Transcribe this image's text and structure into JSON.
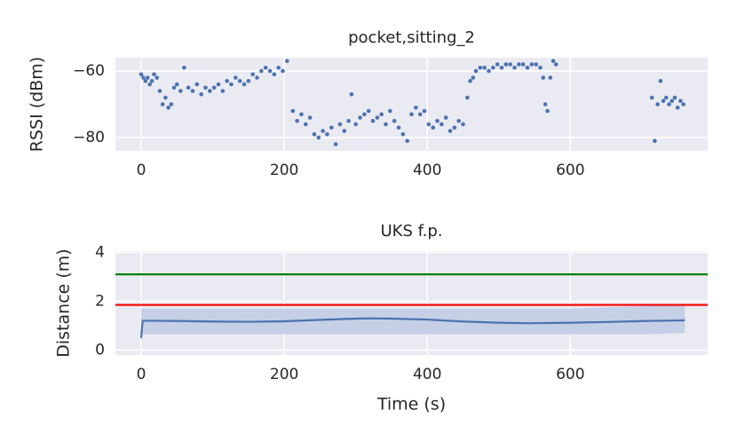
{
  "chart_data": [
    {
      "type": "scatter",
      "title": "pocket,sitting_2",
      "ylabel": "RSSI (dBm)",
      "color": "#4c72b0",
      "grid": true,
      "x": [
        0,
        3,
        6,
        9,
        12,
        15,
        18,
        22,
        26,
        30,
        34,
        38,
        42,
        46,
        50,
        55,
        60,
        66,
        72,
        78,
        84,
        90,
        96,
        102,
        108,
        114,
        120,
        126,
        132,
        138,
        144,
        150,
        156,
        162,
        168,
        174,
        180,
        186,
        192,
        198,
        204,
        212,
        218,
        224,
        230,
        236,
        242,
        248,
        254,
        260,
        266,
        272,
        278,
        284,
        290,
        294,
        300,
        306,
        312,
        318,
        324,
        330,
        336,
        342,
        348,
        354,
        360,
        366,
        372,
        378,
        384,
        390,
        396,
        402,
        408,
        414,
        420,
        426,
        432,
        438,
        444,
        450,
        456,
        460,
        464,
        468,
        474,
        480,
        486,
        492,
        498,
        504,
        510,
        516,
        522,
        528,
        534,
        540,
        546,
        552,
        558,
        562,
        565,
        568,
        572,
        576,
        580,
        714,
        718,
        722,
        726,
        730,
        734,
        738,
        742,
        746,
        750,
        754,
        758
      ],
      "y": [
        -61,
        -62,
        -63,
        -62,
        -64,
        -63,
        -61,
        -62,
        -66,
        -70,
        -68,
        -71,
        -70,
        -65,
        -64,
        -66,
        -59,
        -65,
        -66,
        -64,
        -67,
        -65,
        -66,
        -65,
        -64,
        -66,
        -63,
        -64,
        -62,
        -63,
        -64,
        -63,
        -61,
        -62,
        -60,
        -59,
        -60,
        -61,
        -59,
        -60,
        -57,
        -72,
        -75,
        -73,
        -76,
        -74,
        -79,
        -80,
        -78,
        -79,
        -77,
        -82,
        -76,
        -78,
        -75,
        -67,
        -76,
        -74,
        -73,
        -72,
        -75,
        -74,
        -73,
        -76,
        -72,
        -75,
        -77,
        -79,
        -81,
        -73,
        -71,
        -73,
        -72,
        -76,
        -77,
        -75,
        -76,
        -74,
        -78,
        -77,
        -75,
        -76,
        -68,
        -63,
        -62,
        -60,
        -59,
        -59,
        -60,
        -59,
        -58,
        -59,
        -58,
        -58,
        -59,
        -58,
        -58,
        -59,
        -58,
        -58,
        -59,
        -62,
        -70,
        -72,
        -62,
        -57,
        -58,
        -68,
        -81,
        -70,
        -63,
        -69,
        -68,
        -70,
        -69,
        -68,
        -71,
        -69,
        -70
      ],
      "xlim": [
        -36,
        792
      ],
      "ylim": [
        -84,
        -56
      ],
      "xticks": [
        0,
        200,
        400,
        600
      ],
      "yticks": [
        {
          "value": -80,
          "label": "−80"
        },
        {
          "value": -60,
          "label": "−60"
        }
      ]
    },
    {
      "type": "line",
      "title": "UKS f.p.",
      "xlabel": "Time (s)",
      "ylabel": "Distance (m)",
      "color": "#4c72b0",
      "grid": true,
      "x": [
        0,
        2,
        20,
        60,
        100,
        150,
        200,
        250,
        300,
        320,
        350,
        400,
        450,
        500,
        540,
        600,
        650,
        700,
        760
      ],
      "values": [
        0.5,
        1.2,
        1.2,
        1.19,
        1.17,
        1.16,
        1.18,
        1.24,
        1.29,
        1.3,
        1.29,
        1.25,
        1.17,
        1.12,
        1.1,
        1.12,
        1.15,
        1.19,
        1.22
      ],
      "band": {
        "color": "#c5d0e6",
        "lower": [
          0.3,
          0.65,
          0.65,
          0.65,
          0.65,
          0.65,
          0.65,
          0.65,
          0.65,
          0.65,
          0.65,
          0.65,
          0.65,
          0.65,
          0.65,
          0.65,
          0.65,
          0.65,
          0.7
        ],
        "upper": [
          1.7,
          1.7,
          1.7,
          1.7,
          1.7,
          1.7,
          1.7,
          1.7,
          1.7,
          1.7,
          1.7,
          1.7,
          1.7,
          1.7,
          1.7,
          1.7,
          1.75,
          1.8,
          1.9
        ]
      },
      "hlines": [
        {
          "y": 3.1,
          "color": "#008000"
        },
        {
          "y": 1.85,
          "color": "#ff0000"
        }
      ],
      "xlim": [
        -36,
        792
      ],
      "ylim": [
        -0.2,
        4.05
      ],
      "xticks": [
        0,
        200,
        400,
        600
      ],
      "yticks": [
        0,
        2,
        4
      ]
    }
  ]
}
